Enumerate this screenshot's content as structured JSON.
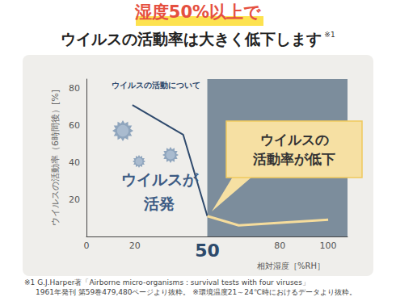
{
  "chart_data": {
    "type": "line",
    "title": "湿度50%以上で",
    "subtitle": "ウイルスの活動率は大きく低下します",
    "title_note": "※1",
    "ylabel": "ウイルスの活動率（6時間後）[%]",
    "xlabel": "相対湿度［%RH］",
    "annotations": {
      "line_caption": "ウイルスの活動について",
      "active": "ウイルスが\n活発",
      "decline": "ウイルスの\n活動率が低下"
    },
    "footnotes": [
      "※1 G.J.Harper著「Airborne micro-organisms : survival tests with four viruses」",
      "1961年発刊 第59巻479,480ページより抜粋。 ※環境温度21～24℃時におけるデータより抜粋。"
    ],
    "series": [
      {
        "color": "#2f4a6d",
        "x": [
          19,
          40,
          50
        ],
        "values": [
          71,
          55,
          11
        ]
      },
      {
        "color": "#f5dc9c",
        "x": [
          50,
          63,
          100
        ],
        "values": [
          11,
          6,
          9
        ]
      }
    ],
    "shaded_region": {
      "xlim": [
        50,
        108
      ],
      "color": "#7c8d9c"
    },
    "xlim": [
      0,
      108
    ],
    "xticks": [
      0,
      20,
      50,
      80,
      100
    ],
    "ylim": [
      0,
      85
    ],
    "yticks": [
      20,
      40,
      60,
      80
    ],
    "grid": false
  }
}
